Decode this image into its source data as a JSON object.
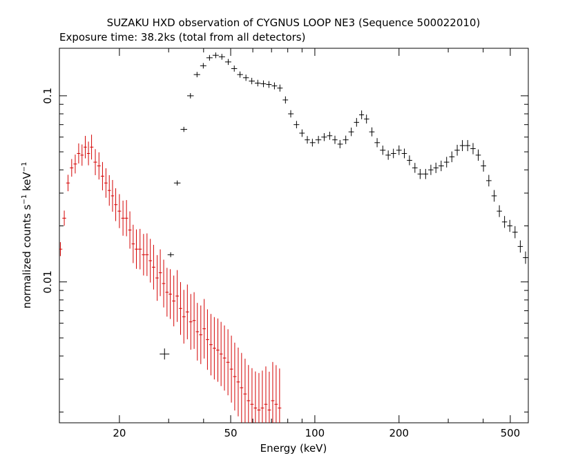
{
  "chart_data": {
    "type": "scatter",
    "title": "SUZAKU HXD observation of CYGNUS LOOP NE3 (Sequence 500022010)",
    "subtitle": "Exposure time: 38.2ks (total from all detectors)",
    "xlabel": "Energy (keV)",
    "ylabel": "normalized counts s^-1 keV^-1",
    "ylabel_parts": {
      "main": "normalized counts s",
      "exp1": "−1",
      "mid": " keV",
      "exp2": "−1"
    },
    "x_scale": "log",
    "y_scale": "log",
    "xlim": [
      12.2,
      580
    ],
    "ylim": [
      0.00175,
      0.18
    ],
    "x_ticks": [
      20,
      50,
      100,
      200,
      500
    ],
    "x_tick_labels": [
      "20",
      "50",
      "100",
      "200",
      "500"
    ],
    "y_ticks": [
      0.01,
      0.1
    ],
    "y_tick_labels": [
      "0.01",
      "0.1"
    ],
    "grid": false,
    "series": [
      {
        "color": "#d40000",
        "x": [
          12.3,
          12.7,
          13.1,
          13.5,
          13.9,
          14.3,
          14.7,
          15.1,
          15.5,
          15.9,
          16.4,
          16.9,
          17.4,
          17.9,
          18.4,
          18.9,
          19.4,
          20.0,
          20.6,
          21.2,
          21.8,
          22.4,
          23.0,
          23.7,
          24.4,
          25.1,
          25.8,
          26.5,
          27.3,
          28.0,
          28.8,
          29.6,
          30.4,
          31.3,
          32.2,
          33.1,
          34.0,
          35.0,
          36.0,
          37.0,
          38.0,
          39.1,
          40.2,
          41.3,
          42.5,
          43.7,
          45.0,
          46.2,
          47.5,
          48.9,
          50.3,
          51.7,
          53.2,
          54.7,
          56.3,
          57.9,
          59.6,
          61.3,
          63.1,
          64.9,
          66.8,
          68.7,
          70.7,
          72.7,
          74.8
        ],
        "y": [
          0.015,
          0.022,
          0.034,
          0.041,
          0.043,
          0.049,
          0.048,
          0.053,
          0.049,
          0.053,
          0.044,
          0.042,
          0.037,
          0.034,
          0.031,
          0.029,
          0.026,
          0.024,
          0.022,
          0.022,
          0.019,
          0.016,
          0.015,
          0.015,
          0.014,
          0.014,
          0.013,
          0.012,
          0.0105,
          0.0112,
          0.0098,
          0.0088,
          0.0086,
          0.0079,
          0.0084,
          0.0072,
          0.0065,
          0.0069,
          0.0061,
          0.0062,
          0.0054,
          0.0052,
          0.0056,
          0.0049,
          0.0046,
          0.0044,
          0.0043,
          0.0041,
          0.0039,
          0.0037,
          0.0034,
          0.0031,
          0.0029,
          0.0027,
          0.0025,
          0.0023,
          0.0022,
          0.0021,
          0.00205,
          0.0021,
          0.0022,
          0.00205,
          0.0023,
          0.0022,
          0.0021
        ]
      },
      {
        "color": "#000000",
        "x": [
          29.0,
          30.5,
          32.2,
          34.0,
          35.9,
          37.9,
          39.9,
          42.0,
          44.2,
          46.5,
          49.0,
          51.5,
          54.0,
          56.7,
          59.5,
          62.5,
          65.5,
          68.5,
          71.7,
          75.0,
          78.5,
          82.0,
          86.0,
          90.0,
          94.0,
          98.0,
          103.0,
          108.0,
          113.0,
          118.0,
          123.0,
          129.0,
          135.0,
          141.0,
          147.0,
          153.0,
          160.0,
          167.0,
          175.0,
          183.0,
          191.0,
          200.0,
          209.0,
          218.0,
          228.0,
          238.0,
          249.0,
          260.0,
          271.0,
          283.0,
          296.0,
          309.0,
          323.0,
          337.0,
          352.0,
          368.0,
          384.0,
          401.0,
          419.0,
          438.0,
          457.0,
          477.0,
          498.0,
          520.0,
          543.0,
          567.0
        ],
        "y": [
          0.0041,
          0.014,
          0.034,
          0.066,
          0.1,
          0.13,
          0.145,
          0.16,
          0.165,
          0.162,
          0.152,
          0.14,
          0.13,
          0.125,
          0.12,
          0.117,
          0.116,
          0.115,
          0.113,
          0.11,
          0.095,
          0.08,
          0.07,
          0.063,
          0.058,
          0.056,
          0.058,
          0.06,
          0.061,
          0.058,
          0.055,
          0.058,
          0.064,
          0.072,
          0.079,
          0.075,
          0.064,
          0.056,
          0.051,
          0.048,
          0.049,
          0.051,
          0.049,
          0.045,
          0.041,
          0.038,
          0.038,
          0.04,
          0.041,
          0.042,
          0.044,
          0.047,
          0.051,
          0.054,
          0.054,
          0.052,
          0.048,
          0.042,
          0.035,
          0.029,
          0.024,
          0.021,
          0.02,
          0.0185,
          0.0155,
          0.0135
        ]
      }
    ]
  }
}
